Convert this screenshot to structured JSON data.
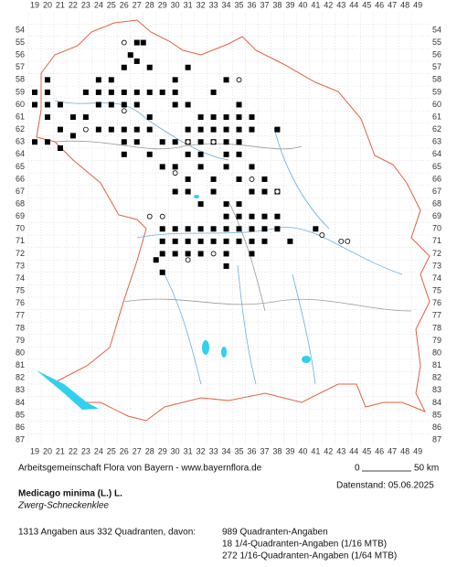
{
  "map": {
    "grid": {
      "x_labels": [
        19,
        20,
        21,
        22,
        23,
        24,
        25,
        26,
        27,
        28,
        29,
        30,
        31,
        32,
        33,
        34,
        35,
        36,
        37,
        38,
        39,
        40,
        41,
        42,
        43,
        44,
        45,
        46,
        47,
        48,
        49
      ],
      "y_labels": [
        54,
        55,
        56,
        57,
        58,
        59,
        60,
        61,
        62,
        63,
        64,
        65,
        66,
        67,
        68,
        69,
        70,
        71,
        72,
        73,
        74,
        75,
        76,
        77,
        78,
        79,
        80,
        81,
        82,
        83,
        84,
        85,
        86,
        87
      ]
    },
    "squares": [
      [
        20,
        58
      ],
      [
        19,
        59
      ],
      [
        20,
        59
      ],
      [
        19,
        60
      ],
      [
        20,
        60
      ],
      [
        21,
        60
      ],
      [
        20,
        61
      ],
      [
        21,
        62
      ],
      [
        22,
        61
      ],
      [
        19,
        63
      ],
      [
        20,
        63
      ],
      [
        21,
        63.5
      ],
      [
        27,
        55
      ],
      [
        27.5,
        55
      ],
      [
        26.5,
        56
      ],
      [
        27,
        56.5
      ],
      [
        28,
        57
      ],
      [
        26,
        57
      ],
      [
        25,
        58
      ],
      [
        24,
        58
      ],
      [
        23,
        59
      ],
      [
        24,
        59
      ],
      [
        25,
        59
      ],
      [
        26,
        59
      ],
      [
        27,
        59
      ],
      [
        28,
        59
      ],
      [
        29,
        59
      ],
      [
        30,
        59
      ],
      [
        24,
        60
      ],
      [
        25,
        60
      ],
      [
        26,
        60
      ],
      [
        27,
        60
      ],
      [
        28,
        61
      ],
      [
        23,
        61
      ],
      [
        24,
        62
      ],
      [
        25,
        62
      ],
      [
        26,
        62
      ],
      [
        27,
        62
      ],
      [
        28,
        62
      ],
      [
        26,
        63
      ],
      [
        27,
        63
      ],
      [
        29,
        63
      ],
      [
        26,
        64
      ],
      [
        28,
        64
      ],
      [
        22,
        62.5
      ],
      [
        30,
        58
      ],
      [
        31,
        57
      ],
      [
        34,
        58
      ],
      [
        33,
        59
      ],
      [
        35,
        60
      ],
      [
        30,
        60
      ],
      [
        31,
        60
      ],
      [
        32,
        61
      ],
      [
        33,
        61
      ],
      [
        34,
        61
      ],
      [
        35,
        61
      ],
      [
        36,
        61
      ],
      [
        31,
        62
      ],
      [
        32,
        62
      ],
      [
        33,
        62
      ],
      [
        34,
        62
      ],
      [
        35,
        62
      ],
      [
        36,
        62
      ],
      [
        30,
        63
      ],
      [
        31,
        63
      ],
      [
        32,
        63
      ],
      [
        33,
        63
      ],
      [
        34,
        63
      ],
      [
        35,
        63
      ],
      [
        31,
        64
      ],
      [
        32,
        64
      ],
      [
        34,
        64
      ],
      [
        35,
        64
      ],
      [
        38,
        62
      ],
      [
        29,
        65
      ],
      [
        30,
        65
      ],
      [
        32,
        65
      ],
      [
        34,
        65
      ],
      [
        36,
        65
      ],
      [
        31,
        66
      ],
      [
        33,
        66
      ],
      [
        35,
        66
      ],
      [
        37,
        66
      ],
      [
        30,
        67
      ],
      [
        31,
        67
      ],
      [
        32,
        68
      ],
      [
        33,
        67
      ],
      [
        34,
        68
      ],
      [
        35,
        68
      ],
      [
        36,
        67
      ],
      [
        37,
        67
      ],
      [
        38,
        67
      ],
      [
        34,
        69
      ],
      [
        35,
        69
      ],
      [
        36,
        69
      ],
      [
        37,
        69
      ],
      [
        38,
        69
      ],
      [
        30,
        70
      ],
      [
        31,
        70
      ],
      [
        32,
        70
      ],
      [
        33,
        70
      ],
      [
        34,
        70
      ],
      [
        35,
        70
      ],
      [
        36,
        70
      ],
      [
        37,
        70
      ],
      [
        38,
        70
      ],
      [
        29,
        71
      ],
      [
        30,
        71
      ],
      [
        31,
        71
      ],
      [
        32,
        71
      ],
      [
        33,
        71
      ],
      [
        34,
        71
      ],
      [
        35,
        71
      ],
      [
        36,
        71
      ],
      [
        29,
        72
      ],
      [
        30,
        72
      ],
      [
        31,
        72
      ],
      [
        32,
        72
      ],
      [
        34,
        72
      ],
      [
        36,
        72
      ],
      [
        37,
        71
      ],
      [
        39,
        71
      ],
      [
        41,
        70
      ],
      [
        34,
        73
      ],
      [
        29,
        70
      ],
      [
        28.5,
        72.5
      ],
      [
        29,
        73.5
      ]
    ],
    "circles": [
      [
        26,
        55
      ],
      [
        26,
        60.5
      ],
      [
        23,
        62
      ],
      [
        35,
        58
      ],
      [
        31,
        63
      ],
      [
        33,
        63
      ],
      [
        30,
        65.5
      ],
      [
        28,
        69
      ],
      [
        29,
        69
      ],
      [
        31,
        72.5
      ],
      [
        36,
        66
      ],
      [
        38,
        67
      ],
      [
        41.5,
        70.5
      ],
      [
        43,
        71
      ],
      [
        43.5,
        71
      ],
      [
        33,
        72
      ]
    ]
  },
  "footer": {
    "credit": "Arbeitsgemeinschaft Flora von Bayern - www.bayernflora.de",
    "scale_start": "0",
    "scale_end": "50 km",
    "date": "Datenstand: 05.06.2025",
    "species": "Medicago minima (L.) L.",
    "common_name": "Zwerg-Schneckenklee",
    "summary": "1313 Angaben aus 332 Quadranten, davon:",
    "counts": [
      "989 Quadranten-Angaben",
      "18 1/4-Quadranten-Angaben (1/16 MTB)",
      "272 1/16-Quadranten-Angaben (1/64 MTB)"
    ]
  }
}
